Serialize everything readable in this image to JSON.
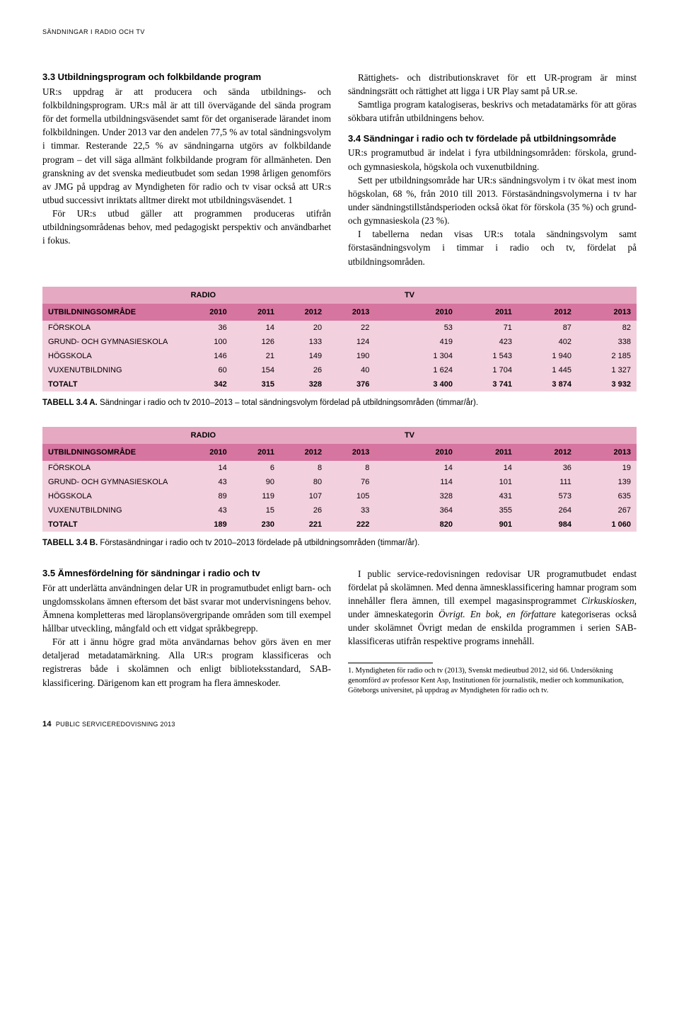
{
  "running_head": "SÄNDNINGAR I RADIO OCH TV",
  "section33_head": "3.3 Utbildningsprogram och folkbildande program",
  "section33_p1": "UR:s uppdrag är att producera och sända utbildnings- och folkbildningsprogram. UR:s mål är att till övervägande del sända program för det formella utbildningsväsendet samt för det organiserade lärandet inom folkbildningen. Under 2013 var den andelen 77,5 % av total sändningsvolym i timmar. Resterande 22,5 % av sändningarna utgörs av folkbildande program – det vill säga allmänt folkbildande program för allmänheten. Den granskning av det svenska medieutbudet som sedan 1998 årligen genomförs av JMG på uppdrag av Myndigheten för radio och tv visar också att UR:s utbud successivt inriktats alltmer direkt mot utbildningsväsendet. 1",
  "section33_p2": "För UR:s utbud gäller att programmen produceras utifrån utbildningsområdenas behov, med pedagogiskt perspektiv och användbarhet i fokus.",
  "section33_p3": "Rättighets- och distributionskravet för ett UR-program är minst sändningsrätt och rättighet att ligga i UR Play samt på UR.se.",
  "section33_p4": "Samtliga program katalogiseras, beskrivs och metadatamärks för att göras sökbara utifrån utbildningens behov.",
  "section34_head": "3.4 Sändningar i radio och tv fördelade på utbildningsområde",
  "section34_p1": "UR:s programutbud är indelat i fyra utbildningsområden: förskola, grund- och gymnasieskola, högskola och vuxenutbildning.",
  "section34_p2": "Sett per utbildningsområde har UR:s sändningsvolym i tv ökat mest inom högskolan, 68 %, från 2010 till 2013. Förstasändningsvolymerna i tv har under sändningstillståndsperioden också ökat för förskola (35 %) och grund- och gymnasieskola (23 %).",
  "section34_p3": "I tabellerna nedan visas UR:s totala sändningsvolym samt förstasändningsvolym i timmar i radio och tv, fördelat på utbildningsområden.",
  "table_common": {
    "radio_label": "RADIO",
    "tv_label": "TV",
    "area_label": "UTBILDNINGSOMRÅDE",
    "years": [
      "2010",
      "2011",
      "2012",
      "2013"
    ],
    "row_labels": [
      "FÖRSKOLA",
      "GRUND- OCH GYMNASIESKOLA",
      "HÖGSKOLA",
      "VUXENUTBILDNING",
      "TOTALT"
    ]
  },
  "tableA": {
    "radio": [
      [
        "36",
        "14",
        "20",
        "22"
      ],
      [
        "100",
        "126",
        "133",
        "124"
      ],
      [
        "146",
        "21",
        "149",
        "190"
      ],
      [
        "60",
        "154",
        "26",
        "40"
      ],
      [
        "342",
        "315",
        "328",
        "376"
      ]
    ],
    "tv": [
      [
        "53",
        "71",
        "87",
        "82"
      ],
      [
        "419",
        "423",
        "402",
        "338"
      ],
      [
        "1 304",
        "1 543",
        "1 940",
        "2 185"
      ],
      [
        "1 624",
        "1 704",
        "1 445",
        "1 327"
      ],
      [
        "3 400",
        "3 741",
        "3 874",
        "3 932"
      ]
    ],
    "caption_bold": "TABELL 3.4 A.",
    "caption_rest": " Sändningar i radio och tv 2010–2013 – total sändningsvolym fördelad på utbildningsområden (timmar/år)."
  },
  "tableB": {
    "radio": [
      [
        "14",
        "6",
        "8",
        "8"
      ],
      [
        "43",
        "90",
        "80",
        "76"
      ],
      [
        "89",
        "119",
        "107",
        "105"
      ],
      [
        "43",
        "15",
        "26",
        "33"
      ],
      [
        "189",
        "230",
        "221",
        "222"
      ]
    ],
    "tv": [
      [
        "14",
        "14",
        "36",
        "19"
      ],
      [
        "114",
        "101",
        "111",
        "139"
      ],
      [
        "328",
        "431",
        "573",
        "635"
      ],
      [
        "364",
        "355",
        "264",
        "267"
      ],
      [
        "820",
        "901",
        "984",
        "1 060"
      ]
    ],
    "caption_bold": "TABELL 3.4 B.",
    "caption_rest": " Förstasändningar i radio och tv 2010–2013 fördelade på utbildningsområden (timmar/år)."
  },
  "section35_head": "3.5 Ämnesfördelning för sändningar i radio och tv",
  "section35_p1": "För att underlätta användningen delar UR in programutbudet enligt barn- och ungdomsskolans ämnen eftersom det bäst svarar mot undervisningens behov. Ämnena kompletteras med läroplansövergripande områden som till exempel hållbar utveckling, mångfald och ett vidgat språkbegrepp.",
  "section35_p2": "För att i ännu högre grad möta användarnas behov görs även en mer detaljerad metadatamärkning. Alla UR:s program klassificeras och registreras både i skolämnen och enligt biblioteksstandard, SAB-klassificering. Därigenom kan ett program ha flera ämneskoder.",
  "section35_p3a": "I public service-redovisningen redovisar UR programutbudet endast fördelat på skolämnen. Med denna ämnesklassificering hamnar program som innehåller flera ämnen, till exempel magasinsprogrammet ",
  "section35_p3_em1": "Cirkuskiosken",
  "section35_p3b": ", under ämneskategorin ",
  "section35_p3_em2": "Övrigt. En bok, en författare",
  "section35_p3c": " kategoriseras också under skolämnet Övrigt medan de enskilda programmen i serien SAB-klassificeras utifrån respektive programs innehåll.",
  "footnote": "1. Myndigheten för radio och tv (2013), Svenskt medieutbud 2012, sid 66. Undersökning genomförd av professor Kent Asp, Institutionen för journalistik, medier och kommunikation, Göteborgs universitet, på uppdrag av Myndigheten för radio och tv.",
  "page_num": "14",
  "page_foot_text": "PUBLIC SERVICEREDOVISNING 2013",
  "colors": {
    "header_bg": "#d675a0",
    "subhead_bg": "#e6a9c2",
    "row_bg": "#f3d0de"
  }
}
